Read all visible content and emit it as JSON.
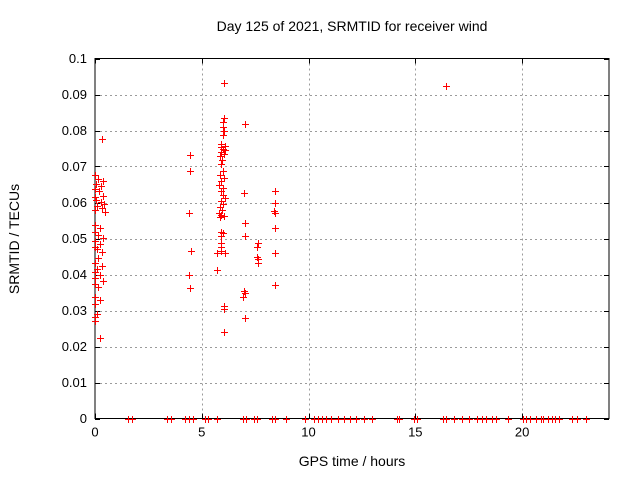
{
  "chart_data": {
    "type": "scatter",
    "title": "Day 125 of 2021, SRMTID for receiver wind",
    "xlabel": "GPS time / hours",
    "ylabel": "SRMTID / TECUs",
    "xlim": [
      0,
      24.07
    ],
    "ylim": [
      0,
      0.1
    ],
    "xticks": {
      "values": [
        0,
        5,
        10,
        15,
        20
      ],
      "labels": [
        "0",
        "5",
        "10",
        "15",
        "20"
      ]
    },
    "yticks": {
      "values": [
        0,
        0.01,
        0.02,
        0.03,
        0.04,
        0.05,
        0.06,
        0.07,
        0.08,
        0.09,
        0.1
      ],
      "labels": [
        "0",
        "0.01",
        "0.02",
        "0.03",
        "0.04",
        "0.05",
        "0.06",
        "0.07",
        "0.08",
        "0.09",
        "0.1"
      ]
    },
    "grid": true,
    "legend": false,
    "marker": {
      "shape": "plus",
      "color": "#ff0000",
      "size": 7
    },
    "colors": {
      "axis": "#000000",
      "grid": "#9b9b9b",
      "background": "#ffffff",
      "text": "#000000"
    },
    "series": [
      {
        "name": "SRMTID",
        "points": [
          [
            0.31,
            0.0777
          ],
          [
            0.0,
            0.0677
          ],
          [
            0.15,
            0.0665
          ],
          [
            0.36,
            0.066
          ],
          [
            0.05,
            0.0652
          ],
          [
            0.27,
            0.0646
          ],
          [
            0.0,
            0.0638
          ],
          [
            0.2,
            0.0632
          ],
          [
            0.39,
            0.0618
          ],
          [
            0.02,
            0.0615
          ],
          [
            0.03,
            0.0607
          ],
          [
            0.27,
            0.0602
          ],
          [
            0.42,
            0.0597
          ],
          [
            0.09,
            0.0591
          ],
          [
            0.31,
            0.0586
          ],
          [
            0.0,
            0.058
          ],
          [
            0.47,
            0.0574
          ],
          [
            0.0,
            0.0538
          ],
          [
            0.23,
            0.0528
          ],
          [
            0.02,
            0.0517
          ],
          [
            0.15,
            0.051
          ],
          [
            0.39,
            0.0502
          ],
          [
            0.0,
            0.0494
          ],
          [
            0.23,
            0.0486
          ],
          [
            0.0,
            0.0477
          ],
          [
            0.08,
            0.0471
          ],
          [
            0.31,
            0.0463
          ],
          [
            0.15,
            0.0445
          ],
          [
            0.02,
            0.0433
          ],
          [
            0.31,
            0.0424
          ],
          [
            0.08,
            0.0416
          ],
          [
            0.0,
            0.0408
          ],
          [
            0.23,
            0.0399
          ],
          [
            0.0,
            0.0389
          ],
          [
            0.39,
            0.0383
          ],
          [
            0.02,
            0.0374
          ],
          [
            0.15,
            0.0365
          ],
          [
            0.0,
            0.0338
          ],
          [
            0.23,
            0.0328
          ],
          [
            0.0,
            0.0317
          ],
          [
            0.08,
            0.0291
          ],
          [
            0.02,
            0.0281
          ],
          [
            0.0,
            0.0271
          ],
          [
            0.23,
            0.0224
          ],
          [
            4.44,
            0.0732
          ],
          [
            4.44,
            0.0688
          ],
          [
            4.41,
            0.0572
          ],
          [
            4.49,
            0.0465
          ],
          [
            4.39,
            0.0399
          ],
          [
            4.44,
            0.0363
          ],
          [
            6.03,
            0.0932
          ],
          [
            6.03,
            0.0834
          ],
          [
            6.0,
            0.0823
          ],
          [
            6.0,
            0.0811
          ],
          [
            6.03,
            0.0799
          ],
          [
            6.0,
            0.0788
          ],
          [
            5.92,
            0.0762
          ],
          [
            6.07,
            0.0758
          ],
          [
            5.89,
            0.0753
          ],
          [
            6.0,
            0.0749
          ],
          [
            6.11,
            0.0745
          ],
          [
            5.92,
            0.074
          ],
          [
            6.03,
            0.0734
          ],
          [
            5.84,
            0.073
          ],
          [
            5.95,
            0.0718
          ],
          [
            5.89,
            0.0706
          ],
          [
            6.0,
            0.0688
          ],
          [
            5.84,
            0.0677
          ],
          [
            6.04,
            0.0669
          ],
          [
            5.92,
            0.066
          ],
          [
            5.79,
            0.0649
          ],
          [
            6.0,
            0.0641
          ],
          [
            5.89,
            0.0632
          ],
          [
            6.0,
            0.0621
          ],
          [
            6.07,
            0.0612
          ],
          [
            5.92,
            0.0604
          ],
          [
            6.0,
            0.0596
          ],
          [
            5.84,
            0.0587
          ],
          [
            5.95,
            0.0579
          ],
          [
            5.79,
            0.057
          ],
          [
            5.92,
            0.0566
          ],
          [
            6.04,
            0.0563
          ],
          [
            5.86,
            0.0559
          ],
          [
            5.89,
            0.0519
          ],
          [
            6.0,
            0.0514
          ],
          [
            5.89,
            0.0507
          ],
          [
            5.92,
            0.0487
          ],
          [
            5.89,
            0.0477
          ],
          [
            5.92,
            0.0466
          ],
          [
            5.69,
            0.046
          ],
          [
            6.11,
            0.0459
          ],
          [
            5.73,
            0.0412
          ],
          [
            6.04,
            0.0312
          ],
          [
            6.04,
            0.0303
          ],
          [
            6.04,
            0.0241
          ],
          [
            7.01,
            0.0818
          ],
          [
            6.97,
            0.0627
          ],
          [
            7.01,
            0.0542
          ],
          [
            7.03,
            0.0506
          ],
          [
            6.98,
            0.0355
          ],
          [
            7.04,
            0.0348
          ],
          [
            6.93,
            0.0338
          ],
          [
            7.02,
            0.028
          ],
          [
            7.63,
            0.0488
          ],
          [
            7.6,
            0.0477
          ],
          [
            7.57,
            0.0448
          ],
          [
            7.63,
            0.0443
          ],
          [
            7.63,
            0.0433
          ],
          [
            8.44,
            0.0632
          ],
          [
            8.44,
            0.06
          ],
          [
            8.38,
            0.0577
          ],
          [
            8.44,
            0.0572
          ],
          [
            8.44,
            0.0528
          ],
          [
            8.44,
            0.0459
          ],
          [
            8.44,
            0.0371
          ],
          [
            16.46,
            0.0925
          ],
          [
            1.53,
            0
          ],
          [
            1.74,
            0
          ],
          [
            3.38,
            0
          ],
          [
            3.57,
            0
          ],
          [
            4.22,
            0
          ],
          [
            4.38,
            0
          ],
          [
            4.59,
            0
          ],
          [
            5.13,
            0
          ],
          [
            5.31,
            0
          ],
          [
            5.73,
            0
          ],
          [
            6.93,
            0
          ],
          [
            7.09,
            0
          ],
          [
            7.45,
            0
          ],
          [
            7.59,
            0
          ],
          [
            8.3,
            0
          ],
          [
            8.43,
            0
          ],
          [
            8.96,
            0
          ],
          [
            9.84,
            0
          ],
          [
            10.25,
            0
          ],
          [
            10.44,
            0
          ],
          [
            10.62,
            0
          ],
          [
            10.83,
            0
          ],
          [
            11.06,
            0
          ],
          [
            11.4,
            0
          ],
          [
            11.65,
            0
          ],
          [
            11.92,
            0
          ],
          [
            12.23,
            0
          ],
          [
            12.62,
            0
          ],
          [
            12.96,
            0
          ],
          [
            14.14,
            0
          ],
          [
            14.25,
            0
          ],
          [
            14.95,
            0
          ],
          [
            15.08,
            0
          ],
          [
            16.28,
            0
          ],
          [
            16.43,
            0
          ],
          [
            16.82,
            0
          ],
          [
            17.18,
            0
          ],
          [
            17.52,
            0
          ],
          [
            17.88,
            0
          ],
          [
            18.12,
            0
          ],
          [
            18.3,
            0
          ],
          [
            18.58,
            0
          ],
          [
            18.8,
            0
          ],
          [
            19.36,
            0
          ],
          [
            20.06,
            0
          ],
          [
            20.17,
            0
          ],
          [
            20.36,
            0
          ],
          [
            20.64,
            0
          ],
          [
            20.87,
            0
          ],
          [
            20.99,
            0
          ],
          [
            21.23,
            0
          ],
          [
            21.39,
            0
          ],
          [
            21.54,
            0
          ],
          [
            21.73,
            0
          ],
          [
            22.35,
            0
          ],
          [
            22.55,
            0
          ],
          [
            22.98,
            0
          ]
        ]
      }
    ]
  }
}
